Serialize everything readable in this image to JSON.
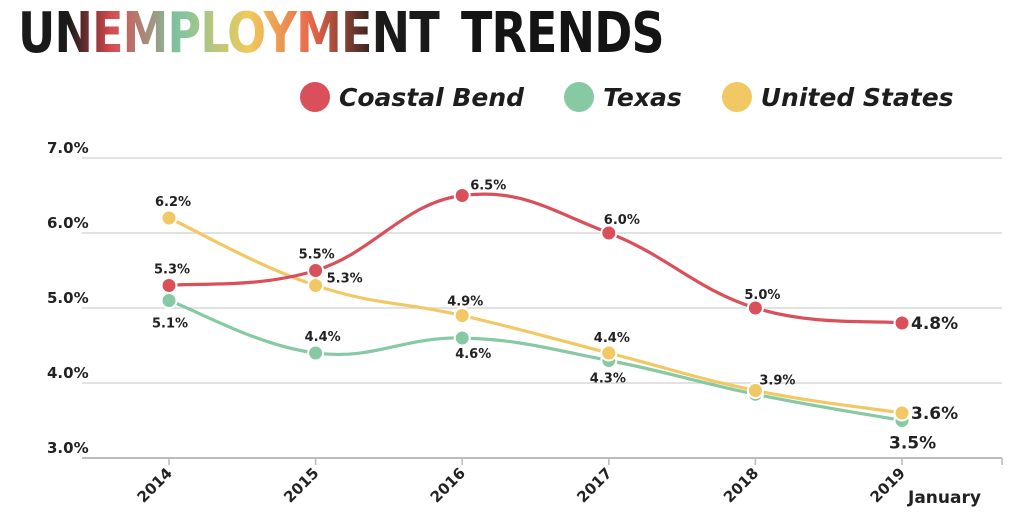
{
  "header": {
    "title_part1": "UNEMPLOYMENT",
    "title_part2": "TRENDS"
  },
  "legend": [
    {
      "label": "Coastal Bend",
      "color": "#d9505a"
    },
    {
      "label": "Texas",
      "color": "#86c9a3"
    },
    {
      "label": "United States",
      "color": "#f1c863"
    }
  ],
  "chart_data": {
    "type": "line",
    "title": "UNEMPLOYMENT TRENDS",
    "categories": [
      "2014",
      "2015",
      "2016",
      "2017",
      "2018",
      "2019"
    ],
    "x_note": "January",
    "ylim": [
      3.0,
      7.0
    ],
    "yticks": [
      "3.0%",
      "4.0%",
      "5.0%",
      "6.0%",
      "7.0%"
    ],
    "grid": true,
    "legend_position": "top-right",
    "series": [
      {
        "name": "Coastal Bend",
        "color": "#d9505a",
        "values": [
          5.3,
          5.5,
          6.5,
          6.0,
          5.0,
          4.8
        ],
        "labels": [
          "5.3%",
          "5.5%",
          "6.5%",
          "6.0%",
          "5.0%",
          "4.8%"
        ]
      },
      {
        "name": "Texas",
        "color": "#86c9a3",
        "values": [
          5.1,
          4.4,
          4.6,
          4.3,
          3.85,
          3.5
        ],
        "labels": [
          "5.1%",
          "4.4%",
          "4.6%",
          "4.3%",
          "",
          "3.5%"
        ]
      },
      {
        "name": "United States",
        "color": "#f1c863",
        "values": [
          6.2,
          5.3,
          4.9,
          4.4,
          3.9,
          3.6
        ],
        "labels": [
          "6.2%",
          "5.3%",
          "4.9%",
          "4.4%",
          "3.9%",
          "3.6%"
        ]
      }
    ]
  }
}
